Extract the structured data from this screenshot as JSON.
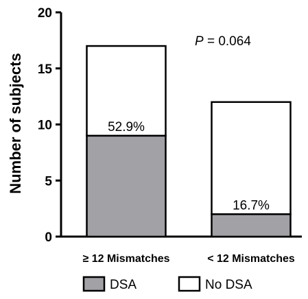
{
  "chart_data": {
    "type": "bar",
    "stacked": true,
    "categories": [
      "≥ 12 Mismatches",
      "< 12 Mismatches"
    ],
    "series": [
      {
        "name": "DSA",
        "values": [
          9,
          2
        ],
        "color": "#a2a1a6"
      },
      {
        "name": "No DSA",
        "values": [
          8,
          10
        ],
        "color": "#ffffff"
      }
    ],
    "totals": [
      17,
      12
    ],
    "percent_labels": [
      "52.9%",
      "16.7%"
    ],
    "ylabel": "Number of subjects",
    "ylim": [
      0,
      20
    ],
    "yticks": [
      0,
      5,
      10,
      15,
      20
    ],
    "annotation": {
      "italic": "P",
      "rest": " = 0.064"
    },
    "legend_position": "bottom",
    "grid": false
  }
}
